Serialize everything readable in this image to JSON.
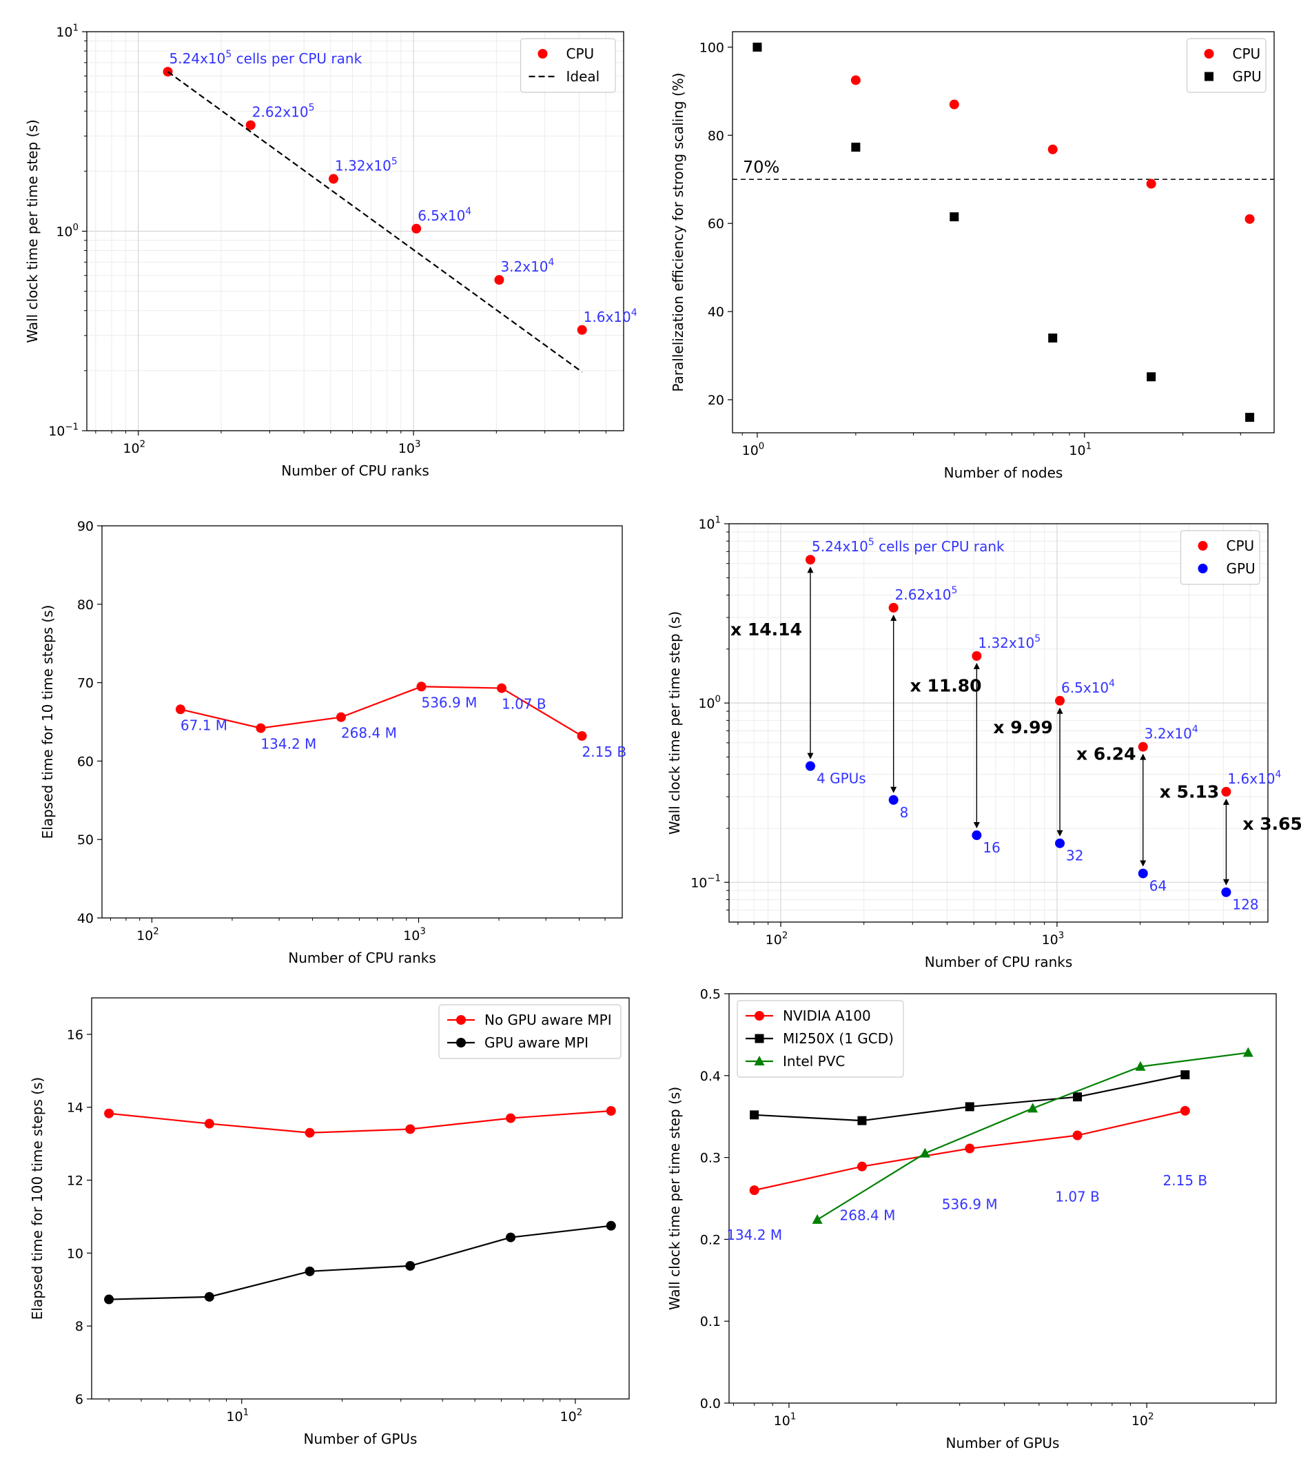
{
  "chart_data": [
    {
      "id": "p1",
      "type": "scatter",
      "xscale": "log",
      "yscale": "log",
      "xlim": [
        65,
        5800
      ],
      "ylim": [
        0.1,
        10
      ],
      "xlabel": "Number of CPU ranks",
      "ylabel": "Wall clock time per time step (s)",
      "xticks": [
        {
          "v": 100,
          "base": "10",
          "exp": "2"
        },
        {
          "v": 1000,
          "base": "10",
          "exp": "3"
        }
      ],
      "yticks": [
        {
          "v": 0.1,
          "base": "10",
          "exp": "−1"
        },
        {
          "v": 1,
          "base": "10",
          "exp": "0"
        },
        {
          "v": 10,
          "base": "10",
          "exp": "1"
        }
      ],
      "grid": "both",
      "legend": {
        "position": "top-right",
        "entries": [
          {
            "label": "CPU",
            "color": "#ff0000",
            "marker": "circle"
          },
          {
            "label": "Ideal",
            "color": "#000000",
            "line": "dashed"
          }
        ]
      },
      "series": [
        {
          "name": "CPU",
          "color": "#ff0000",
          "marker": "circle",
          "line": false,
          "points": [
            [
              128,
              6.3
            ],
            [
              256,
              3.4
            ],
            [
              512,
              1.83
            ],
            [
              1024,
              1.03
            ],
            [
              2048,
              0.57
            ],
            [
              4096,
              0.32
            ]
          ]
        },
        {
          "name": "Ideal",
          "color": "#000000",
          "marker": "none",
          "line": "dashed",
          "points": [
            [
              128,
              6.3
            ],
            [
              4096,
              0.197
            ]
          ]
        }
      ],
      "annotations": [
        {
          "x": 128,
          "y": 6.3,
          "base": "5.24x10",
          "sup": "5",
          "tail": " cells per CPU rank",
          "color": "#3333ff"
        },
        {
          "x": 256,
          "y": 3.4,
          "base": "2.62x10",
          "sup": "5",
          "tail": "",
          "color": "#3333ff"
        },
        {
          "x": 512,
          "y": 1.83,
          "base": "1.32x10",
          "sup": "5",
          "tail": "",
          "color": "#3333ff"
        },
        {
          "x": 1024,
          "y": 1.03,
          "base": "6.5x10",
          "sup": "4",
          "tail": "",
          "color": "#3333ff"
        },
        {
          "x": 2048,
          "y": 0.57,
          "base": "3.2x10",
          "sup": "4",
          "tail": "",
          "color": "#3333ff"
        },
        {
          "x": 4096,
          "y": 0.32,
          "base": "1.6x10",
          "sup": "4",
          "tail": "",
          "color": "#3333ff"
        }
      ]
    },
    {
      "id": "p2",
      "type": "scatter",
      "xscale": "log",
      "yscale": "linear",
      "xlim": [
        0.84,
        38
      ],
      "ylim": [
        12.5,
        103.5
      ],
      "xlabel": "Number of nodes",
      "ylabel": "Parallelization efficiency for strong scaling (%)",
      "xticks": [
        {
          "v": 1,
          "base": "10",
          "exp": "0"
        },
        {
          "v": 10,
          "base": "10",
          "exp": "1"
        }
      ],
      "yticks": [
        {
          "v": 20,
          "label": "20"
        },
        {
          "v": 40,
          "label": "40"
        },
        {
          "v": 60,
          "label": "60"
        },
        {
          "v": 80,
          "label": "80"
        },
        {
          "v": 100,
          "label": "100"
        }
      ],
      "grid": "none",
      "hline": {
        "y": 70,
        "label": "70%"
      },
      "legend": {
        "position": "top-right",
        "entries": [
          {
            "label": "CPU",
            "color": "#ff0000",
            "marker": "circle"
          },
          {
            "label": "GPU",
            "color": "#000000",
            "marker": "square"
          }
        ]
      },
      "series": [
        {
          "name": "CPU",
          "color": "#ff0000",
          "marker": "circle",
          "line": false,
          "points": [
            [
              2,
              92.5
            ],
            [
              4,
              87
            ],
            [
              8,
              76.8
            ],
            [
              16,
              69
            ],
            [
              32,
              61
            ]
          ]
        },
        {
          "name": "GPU",
          "color": "#000000",
          "marker": "square",
          "line": false,
          "points": [
            [
              1,
              100
            ],
            [
              2,
              77.3
            ],
            [
              4,
              61.5
            ],
            [
              8,
              34
            ],
            [
              16,
              25.2
            ],
            [
              32,
              16
            ]
          ]
        }
      ]
    },
    {
      "id": "p3",
      "type": "line",
      "xscale": "log",
      "yscale": "linear",
      "xlim": [
        65,
        5800
      ],
      "ylim": [
        40,
        90
      ],
      "xlabel": "Number of CPU ranks",
      "ylabel": "Elapsed time for 10 time steps (s)",
      "xticks": [
        {
          "v": 100,
          "base": "10",
          "exp": "2"
        },
        {
          "v": 1000,
          "base": "10",
          "exp": "3"
        }
      ],
      "yticks": [
        {
          "v": 40,
          "label": "40"
        },
        {
          "v": 50,
          "label": "50"
        },
        {
          "v": 60,
          "label": "60"
        },
        {
          "v": 70,
          "label": "70"
        },
        {
          "v": 80,
          "label": "80"
        },
        {
          "v": 90,
          "label": "90"
        }
      ],
      "grid": "none",
      "series": [
        {
          "name": "CPU",
          "color": "#ff0000",
          "marker": "circle",
          "line": true,
          "points": [
            [
              128,
              66.6
            ],
            [
              256,
              64.2
            ],
            [
              512,
              65.6
            ],
            [
              1024,
              69.5
            ],
            [
              2048,
              69.3
            ],
            [
              4096,
              63.2
            ]
          ]
        }
      ],
      "annotations": [
        {
          "x": 128,
          "y": 66.6,
          "text": "67.1 M",
          "color": "#3333ff"
        },
        {
          "x": 256,
          "y": 64.2,
          "text": "134.2 M",
          "color": "#3333ff"
        },
        {
          "x": 512,
          "y": 65.6,
          "text": "268.4 M",
          "color": "#3333ff"
        },
        {
          "x": 1024,
          "y": 69.5,
          "text": "536.9 M",
          "color": "#3333ff"
        },
        {
          "x": 2048,
          "y": 69.3,
          "text": "1.07 B",
          "color": "#3333ff"
        },
        {
          "x": 4096,
          "y": 63.2,
          "text": "2.15 B",
          "color": "#3333ff"
        }
      ]
    },
    {
      "id": "p4",
      "type": "scatter",
      "xscale": "log",
      "yscale": "log",
      "xlim": [
        65,
        5800
      ],
      "ylim": [
        0.06,
        10
      ],
      "xlabel": "Number of CPU ranks",
      "ylabel": "Wall clock time per time step (s)",
      "xticks": [
        {
          "v": 100,
          "base": "10",
          "exp": "2"
        },
        {
          "v": 1000,
          "base": "10",
          "exp": "3"
        }
      ],
      "yticks": [
        {
          "v": 0.1,
          "base": "10",
          "exp": "−1"
        },
        {
          "v": 1,
          "base": "10",
          "exp": "0"
        },
        {
          "v": 10,
          "base": "10",
          "exp": "1"
        }
      ],
      "grid": "both",
      "legend": {
        "position": "top-right",
        "entries": [
          {
            "label": "CPU",
            "color": "#ff0000",
            "marker": "circle"
          },
          {
            "label": "GPU",
            "color": "#0000ff",
            "marker": "circle"
          }
        ]
      },
      "series": [
        {
          "name": "CPU",
          "color": "#ff0000",
          "marker": "circle",
          "line": false,
          "points": [
            [
              128,
              6.3
            ],
            [
              256,
              3.4
            ],
            [
              512,
              1.83
            ],
            [
              1024,
              1.03
            ],
            [
              2048,
              0.57
            ],
            [
              4096,
              0.32
            ]
          ]
        },
        {
          "name": "GPU",
          "color": "#0000ff",
          "marker": "circle",
          "line": false,
          "points": [
            [
              128,
              0.445
            ],
            [
              256,
              0.288
            ],
            [
              512,
              0.183
            ],
            [
              1024,
              0.165
            ],
            [
              2048,
              0.112
            ],
            [
              4096,
              0.088
            ]
          ]
        }
      ],
      "annotations": [
        {
          "x": 128,
          "y": 6.3,
          "base": "5.24x10",
          "sup": "5",
          "tail": " cells per CPU rank",
          "color": "#3333ff"
        },
        {
          "x": 256,
          "y": 3.4,
          "base": "2.62x10",
          "sup": "5",
          "tail": "",
          "color": "#3333ff"
        },
        {
          "x": 512,
          "y": 1.83,
          "base": "1.32x10",
          "sup": "5",
          "tail": "",
          "color": "#3333ff"
        },
        {
          "x": 1024,
          "y": 1.03,
          "base": "6.5x10",
          "sup": "4",
          "tail": "",
          "color": "#3333ff"
        },
        {
          "x": 2048,
          "y": 0.57,
          "base": "3.2x10",
          "sup": "4",
          "tail": "",
          "color": "#3333ff"
        },
        {
          "x": 4096,
          "y": 0.32,
          "base": "1.6x10",
          "sup": "4",
          "tail": "",
          "color": "#3333ff"
        }
      ],
      "gpu_labels": [
        {
          "x": 128,
          "y": 0.445,
          "text": "4 GPUs"
        },
        {
          "x": 256,
          "y": 0.288,
          "text": "8"
        },
        {
          "x": 512,
          "y": 0.183,
          "text": "16"
        },
        {
          "x": 1024,
          "y": 0.165,
          "text": "32"
        },
        {
          "x": 2048,
          "y": 0.112,
          "text": "64"
        },
        {
          "x": 4096,
          "y": 0.088,
          "text": "128"
        }
      ],
      "speedups": [
        {
          "x": 128,
          "y_top": 6.3,
          "y_bottom": 0.445,
          "label": "x 14.14"
        },
        {
          "x": 256,
          "y_top": 3.4,
          "y_bottom": 0.288,
          "label": "x 11.80"
        },
        {
          "x": 512,
          "y_top": 1.83,
          "y_bottom": 0.183,
          "label": "x 9.99"
        },
        {
          "x": 1024,
          "y_top": 1.03,
          "y_bottom": 0.165,
          "label": "x 6.24"
        },
        {
          "x": 2048,
          "y_top": 0.57,
          "y_bottom": 0.112,
          "label": "x 5.13"
        },
        {
          "x": 4096,
          "y_top": 0.32,
          "y_bottom": 0.088,
          "label": "x 3.65"
        }
      ]
    },
    {
      "id": "p5",
      "type": "line",
      "xscale": "log",
      "yscale": "linear",
      "xlim": [
        3.55,
        145
      ],
      "ylim": [
        6,
        17
      ],
      "xlabel": "Number of GPUs",
      "ylabel": "Elapsed time for 100 time steps (s)",
      "xticks": [
        {
          "v": 10,
          "base": "10",
          "exp": "1"
        },
        {
          "v": 100,
          "base": "10",
          "exp": "2"
        }
      ],
      "yticks": [
        {
          "v": 6,
          "label": "6"
        },
        {
          "v": 8,
          "label": "8"
        },
        {
          "v": 10,
          "label": "10"
        },
        {
          "v": 12,
          "label": "12"
        },
        {
          "v": 14,
          "label": "14"
        },
        {
          "v": 16,
          "label": "16"
        }
      ],
      "grid": "none",
      "legend": {
        "position": "top-right",
        "entries": [
          {
            "label": "No GPU aware MPI",
            "color": "#ff0000",
            "marker": "circle",
            "line": true
          },
          {
            "label": "GPU aware MPI",
            "color": "#000000",
            "marker": "circle",
            "line": true
          }
        ]
      },
      "series": [
        {
          "name": "No GPU aware MPI",
          "color": "#ff0000",
          "marker": "circle",
          "line": true,
          "points": [
            [
              4,
              13.83
            ],
            [
              8,
              13.55
            ],
            [
              16,
              13.3
            ],
            [
              32,
              13.4
            ],
            [
              64,
              13.7
            ],
            [
              128,
              13.9
            ]
          ]
        },
        {
          "name": "GPU aware MPI",
          "color": "#000000",
          "marker": "circle",
          "line": true,
          "points": [
            [
              4,
              8.73
            ],
            [
              8,
              8.8
            ],
            [
              16,
              9.5
            ],
            [
              32,
              9.65
            ],
            [
              64,
              10.43
            ],
            [
              128,
              10.75
            ]
          ]
        }
      ]
    },
    {
      "id": "p6",
      "type": "line",
      "xscale": "log",
      "yscale": "linear",
      "xlim": [
        6.8,
        230
      ],
      "ylim": [
        0,
        0.5
      ],
      "xlabel": "Number of GPUs",
      "ylabel": "Wall clock time per time step (s)",
      "xticks": [
        {
          "v": 10,
          "base": "10",
          "exp": "1"
        },
        {
          "v": 100,
          "base": "10",
          "exp": "2"
        }
      ],
      "yticks": [
        {
          "v": 0,
          "label": "0.0"
        },
        {
          "v": 0.1,
          "label": "0.1"
        },
        {
          "v": 0.2,
          "label": "0.2"
        },
        {
          "v": 0.3,
          "label": "0.3"
        },
        {
          "v": 0.4,
          "label": "0.4"
        },
        {
          "v": 0.5,
          "label": "0.5"
        }
      ],
      "grid": "none",
      "legend": {
        "position": "top-left",
        "entries": [
          {
            "label": "NVIDIA A100",
            "color": "#ff0000",
            "marker": "circle",
            "line": true
          },
          {
            "label": "MI250X (1 GCD)",
            "color": "#000000",
            "marker": "square",
            "line": true
          },
          {
            "label": "Intel PVC",
            "color": "#008000",
            "marker": "triangle",
            "line": true
          }
        ]
      },
      "series": [
        {
          "name": "NVIDIA A100",
          "color": "#ff0000",
          "marker": "circle",
          "line": true,
          "points": [
            [
              8,
              0.26
            ],
            [
              16,
              0.289
            ],
            [
              32,
              0.311
            ],
            [
              64,
              0.327
            ],
            [
              128,
              0.357
            ]
          ]
        },
        {
          "name": "MI250X (1 GCD)",
          "color": "#000000",
          "marker": "square",
          "line": true,
          "points": [
            [
              8,
              0.352
            ],
            [
              16,
              0.345
            ],
            [
              32,
              0.362
            ],
            [
              64,
              0.374
            ],
            [
              128,
              0.401
            ]
          ]
        },
        {
          "name": "Intel PVC",
          "color": "#008000",
          "marker": "triangle",
          "line": true,
          "points": [
            [
              12,
              0.224
            ],
            [
              24,
              0.305
            ],
            [
              48,
              0.36
            ],
            [
              96,
              0.411
            ],
            [
              192,
              0.428
            ]
          ]
        }
      ],
      "annotations": [
        {
          "x": 8,
          "y": 0.26,
          "text": "134.2 M",
          "color": "#3333ff"
        },
        {
          "x": 16,
          "y": 0.289,
          "text": "268.4 M",
          "color": "#3333ff"
        },
        {
          "x": 32,
          "y": 0.311,
          "text": "536.9 M",
          "color": "#3333ff"
        },
        {
          "x": 64,
          "y": 0.327,
          "text": "1.07 B",
          "color": "#3333ff"
        },
        {
          "x": 128,
          "y": 0.357,
          "text": "2.15 B",
          "color": "#3333ff"
        }
      ]
    }
  ]
}
